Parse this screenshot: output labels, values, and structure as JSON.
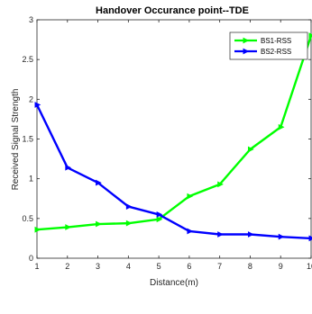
{
  "chart_data": {
    "type": "line",
    "title": "Handover Occurance point--TDE",
    "xlabel": "Distance(m)",
    "ylabel": "Received Signal Strength",
    "x": [
      1,
      2,
      3,
      4,
      5,
      6,
      7,
      8,
      9,
      10
    ],
    "xlim": [
      1,
      10
    ],
    "ylim": [
      0,
      3
    ],
    "xticks": [
      "1",
      "2",
      "3",
      "4",
      "5",
      "6",
      "7",
      "8",
      "9",
      "10"
    ],
    "yticks": [
      "0",
      "0.5",
      "1",
      "1.5",
      "2",
      "2.5",
      "3"
    ],
    "grid": false,
    "legend_position": "top-right",
    "series": [
      {
        "name": "BS1-RSS",
        "color": "#00ff00",
        "values": [
          0.36,
          0.39,
          0.43,
          0.44,
          0.49,
          0.78,
          0.93,
          1.37,
          1.65,
          2.8
        ]
      },
      {
        "name": "BS2-RSS",
        "color": "#0000ff",
        "values": [
          1.93,
          1.14,
          0.95,
          0.65,
          0.55,
          0.34,
          0.3,
          0.3,
          0.27,
          0.25
        ]
      }
    ]
  }
}
